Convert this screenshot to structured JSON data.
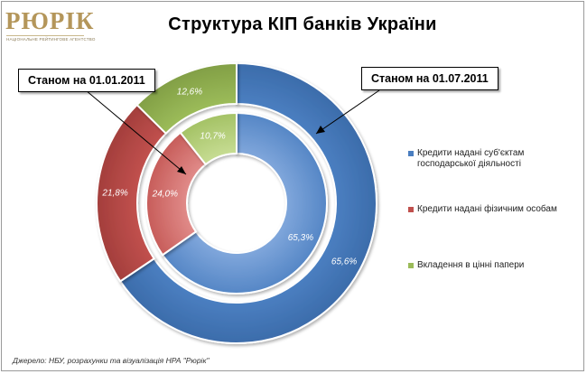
{
  "logo": {
    "word": "РЮРІК",
    "tagline": "НАЦІОНАЛЬНЕ РЕЙТИНГОВЕ АГЕНТСТВО"
  },
  "chart_data": {
    "type": "doughnut",
    "title": "Структура КІП банків України",
    "categories": [
      "Кредити надані суб'єктам господарської діяльності",
      "Кредити надані фізичним особам",
      "Вкладення в цінні папери"
    ],
    "series": [
      {
        "name": "Станом на 01.01.2011",
        "ring": "inner",
        "values": [
          65.3,
          24.0,
          10.7
        ],
        "labels": [
          "65,3%",
          "24,0%",
          "10,7%"
        ]
      },
      {
        "name": "Станом на 01.07.2011",
        "ring": "outer",
        "values": [
          65.6,
          21.8,
          12.6
        ],
        "labels": [
          "65,6%",
          "21,8%",
          "12,6%"
        ]
      }
    ],
    "colors": [
      "#4a7ec0",
      "#c0504d",
      "#9bbb59"
    ],
    "legend_position": "right"
  },
  "callouts": {
    "inner": "Станом на 01.01.2011",
    "outer": "Станом на 01.07.2011"
  },
  "legend": [
    {
      "text": "Кредити надані суб'єктам господарської діяльності",
      "color": "#4a7ec0"
    },
    {
      "text": "Кредити надані фізичним особам",
      "color": "#c0504d"
    },
    {
      "text": "Вкладення в цінні папери",
      "color": "#9bbb59"
    }
  ],
  "source": "Джерело: НБУ, розрахунки та візуалізація НРА \"Рюрік\""
}
